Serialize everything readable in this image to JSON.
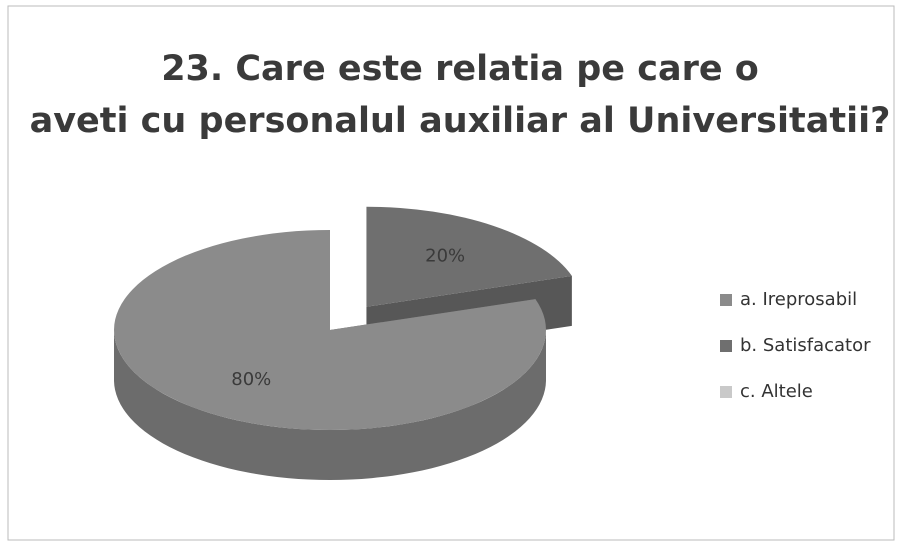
{
  "chart_data": {
    "type": "pie",
    "three_d": true,
    "title": "23. Care este relatia pe care o aveti cu personalul auxiliar al Universitatii?",
    "categories": [
      "a. Ireprosabil",
      "b. Satisfacator",
      "c. Altele"
    ],
    "values": [
      80,
      20,
      0
    ],
    "value_labels": [
      "80%",
      "20%",
      null
    ],
    "colors": [
      "#8b8b8b",
      "#6f6f6f",
      "#c9c9c9"
    ],
    "exploded": [
      false,
      true,
      false
    ],
    "legend": "right"
  }
}
